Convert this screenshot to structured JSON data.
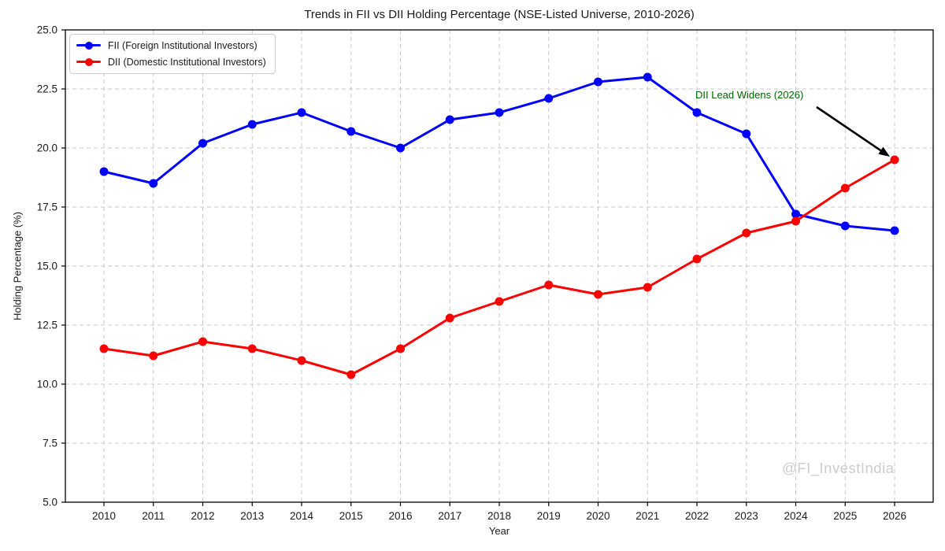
{
  "title": "Trends in FII vs DII Holding Percentage (NSE-Listed Universe, 2010-2026)",
  "watermark": "@FI_InvestIndia",
  "colors": {
    "fii": "#0000ff",
    "dii": "#ff0000",
    "grid": "#c9c9c9",
    "spine": "#000000",
    "annotation": "#006400",
    "arrow": "#000000"
  },
  "chart_data": {
    "type": "line",
    "title": "Trends in FII vs DII Holding Percentage (NSE-Listed Universe, 2010-2026)",
    "xlabel": "Year",
    "ylabel": "Holding Percentage (%)",
    "x": [
      2010,
      2011,
      2012,
      2013,
      2014,
      2015,
      2016,
      2017,
      2018,
      2019,
      2020,
      2021,
      2022,
      2023,
      2024,
      2025,
      2026
    ],
    "ylim": [
      5.0,
      25.0
    ],
    "yticks": [
      5.0,
      7.5,
      10.0,
      12.5,
      15.0,
      17.5,
      20.0,
      22.5,
      25.0
    ],
    "grid": true,
    "legend_position": "upper left",
    "series": [
      {
        "id": "fii",
        "name": "FII (Foreign Institutional Investors)",
        "color": "#0000ff",
        "values": [
          19.0,
          18.5,
          20.2,
          21.0,
          21.5,
          20.7,
          20.0,
          21.2,
          21.5,
          22.1,
          22.8,
          23.0,
          21.5,
          20.6,
          17.2,
          16.7,
          16.5
        ]
      },
      {
        "id": "dii",
        "name": "DII (Domestic Institutional Investors)",
        "color": "#ff0000",
        "values": [
          11.5,
          11.2,
          11.8,
          11.5,
          11.0,
          10.4,
          11.5,
          12.8,
          13.5,
          14.2,
          13.8,
          14.1,
          15.3,
          16.4,
          16.9,
          18.3,
          19.5
        ]
      }
    ],
    "annotation": {
      "text": "DII Lead Widens (2026)",
      "color": "#006400",
      "target_x": 2026,
      "target_y": 19.5
    }
  }
}
